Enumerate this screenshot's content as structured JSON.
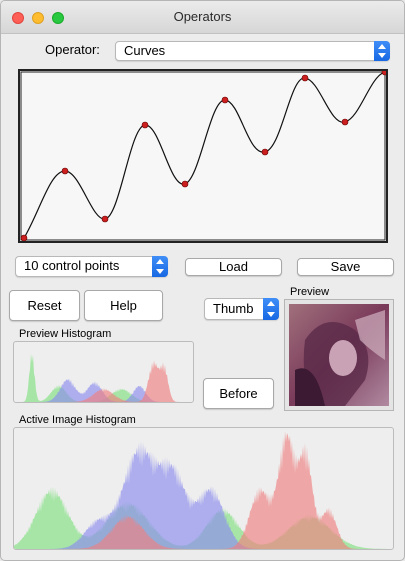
{
  "window": {
    "title": "Operators"
  },
  "operator": {
    "label": "Operator:",
    "value": "Curves"
  },
  "curve": {
    "line_color": "#111111",
    "point_color": "#cc1f1f"
  },
  "controls": {
    "points_select": "10 control points",
    "load_label": "Load",
    "save_label": "Save",
    "reset_label": "Reset",
    "help_label": "Help",
    "thumb_select": "Thumb",
    "before_label": "Before",
    "preview_label": "Preview"
  },
  "histograms": {
    "preview_title": "Preview Histogram",
    "active_title": "Active Image Histogram",
    "colors": {
      "red": "#f08080",
      "green": "#7fe07f",
      "blue": "#8c8cf0"
    }
  }
}
